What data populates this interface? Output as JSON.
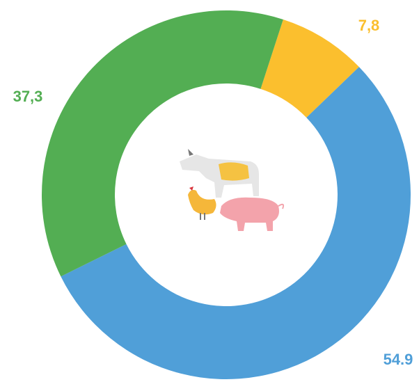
{
  "chart_data": {
    "type": "donut",
    "series": [
      {
        "name": null,
        "color": "#fbbf2e",
        "values": [
          7.8
        ],
        "value_labels": [
          "7,8"
        ]
      },
      {
        "name": null,
        "color": "#509fd8",
        "values": [
          54.9
        ],
        "value_labels": [
          "54.9"
        ]
      },
      {
        "name": null,
        "color": "#53ae53",
        "values": [
          37.3
        ],
        "value_labels": [
          "37,3"
        ]
      }
    ]
  }
}
